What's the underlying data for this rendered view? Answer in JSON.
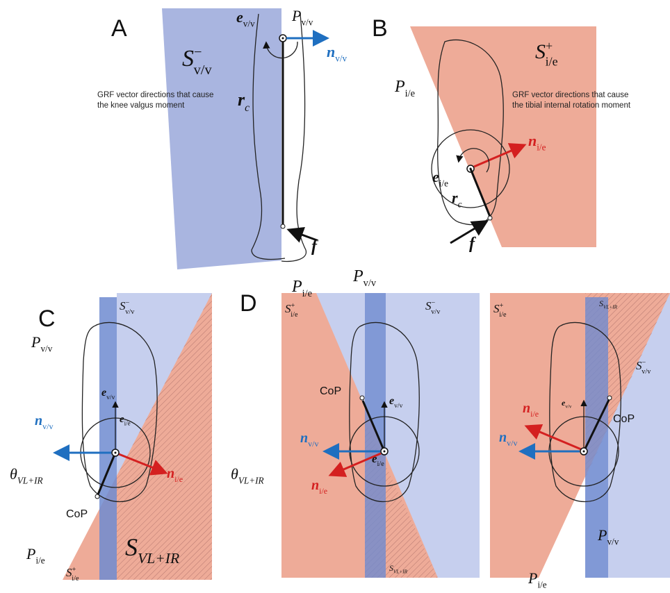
{
  "panels": [
    {
      "label": "A",
      "annotation": [
        "GRF vector directions that cause",
        "the knee valgus moment"
      ],
      "symbols": [
        {
          "base": "S",
          "sup": "−",
          "sub": "v/v"
        },
        {
          "base": "e",
          "sub": "v/v"
        },
        {
          "base": "P",
          "sub": "v/v"
        },
        {
          "base": "n",
          "sub": "v/v"
        },
        {
          "base": "r",
          "sub": "c"
        },
        {
          "base": "f"
        }
      ]
    },
    {
      "label": "B",
      "annotation": [
        "GRF vector directions that cause",
        "the tibial internal rotation moment"
      ],
      "symbols": [
        {
          "base": "S",
          "sup": "+",
          "sub": "i/e"
        },
        {
          "base": "P",
          "sub": "i/e"
        },
        {
          "base": "n",
          "sub": "i/e"
        },
        {
          "base": "e",
          "sub": "i/e"
        },
        {
          "base": "r",
          "sub": "c"
        },
        {
          "base": "f"
        }
      ]
    },
    {
      "label": "C",
      "symbols": [
        {
          "base": "S",
          "sup": "−",
          "sub": "v/v"
        },
        {
          "base": "P",
          "sub": "v/v"
        },
        {
          "base": "e",
          "sub": "v/v"
        },
        {
          "base": "n",
          "sub": "v/v"
        },
        {
          "base": "e",
          "sub": "i/e"
        },
        {
          "base": "n",
          "sub": "i/e"
        },
        {
          "base": "θ",
          "sub": "VL+IR"
        },
        {
          "base": "CoP"
        },
        {
          "base": "P",
          "sub": "i/e"
        },
        {
          "base": "S",
          "sup": "+",
          "sub": "i/e"
        },
        {
          "base": "S",
          "sub": "VL+IR"
        }
      ]
    },
    {
      "label": "D",
      "symbols": [
        {
          "base": "P",
          "sub": "i/e"
        },
        {
          "base": "P",
          "sub": "v/v"
        },
        {
          "base": "S",
          "sup": "+",
          "sub": "i/e"
        },
        {
          "base": "S",
          "sup": "−",
          "sub": "v/v"
        },
        {
          "base": "CoP"
        },
        {
          "base": "e",
          "sub": "v/v"
        },
        {
          "base": "n",
          "sub": "v/v"
        },
        {
          "base": "e",
          "sub": "i/e"
        },
        {
          "base": "θ",
          "sub": "VL+IR"
        },
        {
          "base": "n",
          "sub": "i/e"
        },
        {
          "base": "S",
          "sub": "VL+IR"
        },
        {
          "base": "S",
          "sup": "+",
          "sub": "i/e"
        },
        {
          "base": "S",
          "sub": "VL+IR"
        },
        {
          "base": "S",
          "sup": "−",
          "sub": "v/v"
        },
        {
          "base": "n",
          "sub": "i/e"
        },
        {
          "base": "e",
          "sub": "v/v"
        },
        {
          "base": "CoP"
        },
        {
          "base": "n",
          "sub": "v/v"
        },
        {
          "base": "P",
          "sub": "v/v"
        },
        {
          "base": "P",
          "sub": "i/e"
        }
      ]
    }
  ]
}
